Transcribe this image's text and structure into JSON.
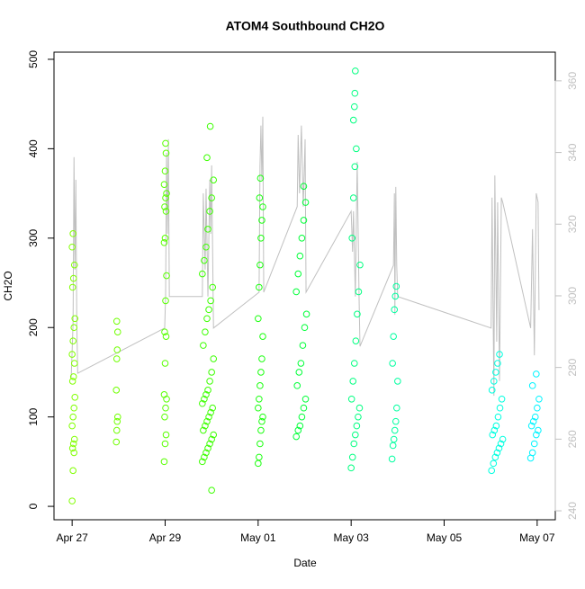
{
  "chart_data": {
    "type": "scatter",
    "title": "ATOM4 Southbound CH2O",
    "x_label": "Date",
    "y_label": "CH2O",
    "xlim": [
      -0.39,
      10.39
    ],
    "xticks": [
      {
        "value": 0,
        "label": "Apr 27"
      },
      {
        "value": 2,
        "label": "Apr 29"
      },
      {
        "value": 4,
        "label": "May 01"
      },
      {
        "value": 6,
        "label": "May 03"
      },
      {
        "value": 8,
        "label": "May 05"
      },
      {
        "value": 10,
        "label": "May 07"
      }
    ],
    "ylim": [
      -15,
      508
    ],
    "yticks": [
      0,
      100,
      200,
      300,
      400,
      500
    ],
    "y2lim": [
      237.5,
      368
    ],
    "y2ticks": [
      240,
      260,
      280,
      300,
      320,
      340,
      360
    ],
    "series": [
      {
        "color": "#80ff00",
        "x": [
          0.0,
          0.02,
          0.04,
          0.01,
          0.03,
          0.05,
          0.0,
          0.02,
          0.04,
          0.06,
          0.01,
          0.03,
          0.05,
          0.0,
          0.02,
          0.04,
          0.06,
          0.01,
          0.03,
          0.05,
          0.0,
          0.02
        ],
        "values": [
          6,
          40,
          60,
          65,
          70,
          75,
          90,
          100,
          110,
          122,
          140,
          145,
          160,
          170,
          185,
          200,
          210,
          245,
          255,
          270,
          290,
          305
        ]
      },
      {
        "color": "#70ff00",
        "x": [
          0.95,
          0.96,
          0.97,
          0.98,
          0.95,
          0.96,
          0.97,
          0.98,
          0.96
        ],
        "values": [
          72,
          85,
          95,
          100,
          130,
          165,
          175,
          195,
          207
        ]
      },
      {
        "color": "#58ff00",
        "x": [
          1.98,
          2.0,
          2.02,
          1.99,
          2.01,
          2.03,
          1.98,
          2.0,
          2.02,
          1.99,
          2.01,
          2.03,
          1.98,
          2.0,
          2.02,
          1.99,
          2.01,
          2.03,
          1.98,
          2.0,
          2.02,
          2.01
        ],
        "values": [
          50,
          70,
          80,
          100,
          110,
          120,
          125,
          160,
          190,
          195,
          230,
          258,
          295,
          300,
          330,
          335,
          345,
          350,
          360,
          375,
          395,
          406
        ]
      },
      {
        "color": "#3cff00",
        "x": [
          3.0,
          2.8,
          2.84,
          2.88,
          2.92,
          2.96,
          3.0,
          3.04,
          2.82,
          2.86,
          2.9,
          2.94,
          2.98,
          3.02,
          2.8,
          2.84,
          2.88,
          2.92,
          2.96,
          3.0,
          3.04,
          2.82,
          2.86,
          2.9,
          2.94,
          2.98,
          3.02,
          2.8,
          2.84,
          2.88,
          2.92,
          2.96,
          3.0,
          3.04,
          2.9,
          2.97
        ],
        "values": [
          18,
          50,
          55,
          60,
          65,
          70,
          75,
          80,
          85,
          90,
          95,
          100,
          105,
          110,
          115,
          120,
          125,
          130,
          140,
          150,
          165,
          180,
          195,
          210,
          220,
          230,
          245,
          260,
          275,
          290,
          310,
          330,
          345,
          365,
          390,
          425
        ]
      },
      {
        "color": "#1cff10",
        "x": [
          4.0,
          4.02,
          4.04,
          4.06,
          4.08,
          4.1,
          4.0,
          4.02,
          4.04,
          4.06,
          4.08,
          4.1,
          4.0,
          4.02,
          4.04,
          4.06,
          4.08,
          4.1,
          4.03,
          4.05
        ],
        "values": [
          48,
          55,
          70,
          85,
          95,
          100,
          110,
          120,
          135,
          150,
          165,
          190,
          210,
          245,
          270,
          300,
          320,
          335,
          345,
          367
        ]
      },
      {
        "color": "#00ff38",
        "x": [
          4.82,
          4.86,
          4.9,
          4.94,
          4.98,
          5.02,
          4.84,
          4.88,
          4.92,
          4.96,
          5.0,
          5.04,
          4.82,
          4.86,
          4.9,
          4.94,
          4.98,
          5.02,
          4.98
        ],
        "values": [
          78,
          85,
          90,
          100,
          110,
          120,
          135,
          150,
          160,
          180,
          200,
          215,
          240,
          260,
          280,
          300,
          320,
          340,
          358
        ]
      },
      {
        "color": "#00ff80",
        "x": [
          6.0,
          6.03,
          6.06,
          6.09,
          6.12,
          6.15,
          6.18,
          6.01,
          6.04,
          6.07,
          6.1,
          6.13,
          6.16,
          6.19,
          6.02,
          6.05,
          6.08,
          6.11,
          6.05,
          6.07,
          6.08,
          6.09
        ],
        "values": [
          43,
          55,
          70,
          80,
          90,
          100,
          110,
          120,
          140,
          160,
          185,
          215,
          240,
          270,
          300,
          345,
          380,
          400,
          432,
          447,
          462,
          487
        ]
      },
      {
        "color": "#00ffa0",
        "x": [
          6.88,
          6.9,
          6.92,
          6.94,
          6.96,
          6.98,
          7.0,
          6.89,
          6.91,
          6.93,
          6.95,
          6.97
        ],
        "values": [
          53,
          68,
          75,
          85,
          95,
          110,
          140,
          160,
          190,
          220,
          235,
          246
        ]
      },
      {
        "color": "#00ffe0",
        "x": [
          9.02,
          9.06,
          9.1,
          9.14,
          9.18,
          9.22,
          9.26,
          9.04,
          9.08,
          9.12,
          9.16,
          9.2,
          9.24,
          9.03,
          9.07,
          9.11,
          9.15,
          9.19
        ],
        "values": [
          40,
          48,
          55,
          60,
          65,
          70,
          75,
          80,
          85,
          90,
          100,
          110,
          120,
          130,
          140,
          150,
          160,
          170
        ]
      },
      {
        "color": "#00f4ff",
        "x": [
          9.86,
          9.9,
          9.94,
          9.98,
          10.02,
          9.88,
          9.92,
          9.96,
          10.0,
          10.04,
          9.9,
          9.98
        ],
        "values": [
          54,
          60,
          70,
          80,
          85,
          90,
          95,
          100,
          110,
          120,
          135,
          148
        ]
      },
      {
        "type": "line",
        "axis": "y2",
        "color": "#c0c0c0",
        "x": [
          -0.02,
          0.02,
          0.04,
          0.06,
          0.08,
          0.1,
          0.12,
          1.99,
          2.01,
          2.03,
          2.05,
          2.07,
          2.09,
          2.8,
          2.82,
          2.86,
          2.88,
          2.92,
          2.96,
          2.98,
          3.0,
          3.04,
          4.02,
          4.04,
          4.06,
          4.08,
          4.1,
          4.12,
          4.84,
          4.86,
          4.89,
          4.93,
          4.97,
          5.01,
          5.03,
          6.0,
          6.03,
          6.05,
          6.09,
          6.13,
          6.17,
          6.19,
          6.91,
          6.93,
          6.94,
          6.96,
          6.98,
          7.0,
          9.01,
          9.03,
          9.07,
          9.09,
          9.13,
          9.15,
          9.19,
          9.23,
          9.26,
          9.86,
          9.9,
          9.94,
          9.98,
          10.02,
          10.04
        ],
        "values": [
          277.2,
          292.2,
          338.7,
          307.3,
          332.4,
          292.2,
          278.4,
          291.0,
          299.8,
          339.9,
          317.3,
          343.7,
          299.8,
          299.8,
          328.6,
          307.3,
          329.9,
          299.8,
          332.4,
          317.3,
          336.4,
          291.0,
          301.0,
          336.4,
          347.5,
          332.4,
          350.0,
          301.0,
          324.9,
          344.9,
          328.6,
          347.5,
          324.9,
          343.7,
          301.0,
          323.6,
          312.3,
          323.6,
          299.8,
          337.4,
          299.8,
          285.9,
          308.5,
          328.6,
          294.7,
          330.4,
          308.5,
          299.8,
          291.0,
          327.4,
          272.1,
          333.6,
          287.2,
          326.1,
          276.2,
          327.4,
          326.1,
          291.0,
          318.6,
          283.4,
          328.6,
          326.1,
          296.0
        ]
      }
    ]
  }
}
